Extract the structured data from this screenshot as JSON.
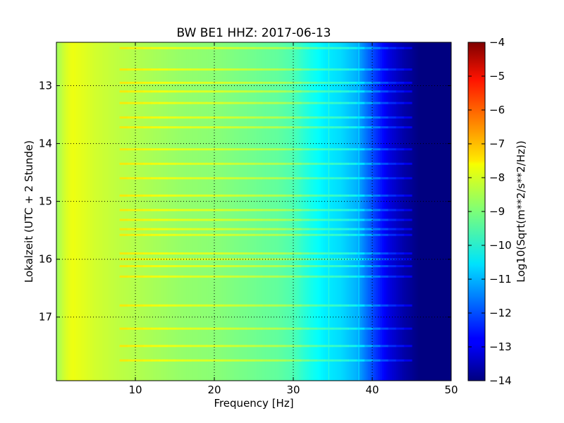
{
  "chart_data": {
    "type": "heatmap",
    "title": "BW BE1 HHZ: 2017-06-13",
    "xlabel": "Frequency [Hz]",
    "ylabel": "Lokalzeit (UTC + 2 Stunde)",
    "xlim": [
      0,
      50
    ],
    "ylim": [
      12.25,
      18.1
    ],
    "y_inverted": true,
    "x_ticks": [
      10,
      20,
      30,
      40,
      50
    ],
    "x_tick_labels": [
      "10",
      "20",
      "30",
      "40",
      "50"
    ],
    "y_ticks": [
      13,
      14,
      15,
      16,
      17
    ],
    "y_tick_labels": [
      "13",
      "14",
      "15",
      "16",
      "17"
    ],
    "grid": true,
    "colorbar": {
      "label": "Log10(Sqrt(m**2/s**2/Hz))",
      "colormap": "jet",
      "range": [
        -14,
        -4
      ],
      "ticks": [
        -4,
        -5,
        -6,
        -7,
        -8,
        -9,
        -10,
        -11,
        -12,
        -13,
        -14
      ],
      "tick_labels": [
        "−4",
        "−5",
        "−6",
        "−7",
        "−8",
        "−9",
        "−10",
        "−11",
        "−12",
        "−13",
        "−14"
      ]
    },
    "spectrum_profile": {
      "frequency_hz": [
        0,
        1,
        2,
        3,
        5,
        8,
        12,
        16,
        20,
        24,
        28,
        30,
        32,
        34,
        36,
        38,
        40,
        42,
        44,
        46,
        50
      ],
      "log10_amplitude": [
        -8.7,
        -8.2,
        -7.9,
        -8.0,
        -8.2,
        -8.4,
        -8.6,
        -8.8,
        -8.9,
        -9.1,
        -9.3,
        -9.5,
        -10.0,
        -10.4,
        -10.6,
        -11.0,
        -12.0,
        -13.0,
        -13.6,
        -14.0,
        -14.0
      ]
    },
    "noise_band_times": [
      12.35,
      12.72,
      12.95,
      13.1,
      13.3,
      13.55,
      13.72,
      14.1,
      14.35,
      14.6,
      14.9,
      15.15,
      15.32,
      15.48,
      15.58,
      15.9,
      16.0,
      16.12,
      16.3,
      16.8,
      17.2,
      17.5,
      17.75
    ],
    "vertical_lines_hz": [
      34.5,
      38.3
    ]
  }
}
